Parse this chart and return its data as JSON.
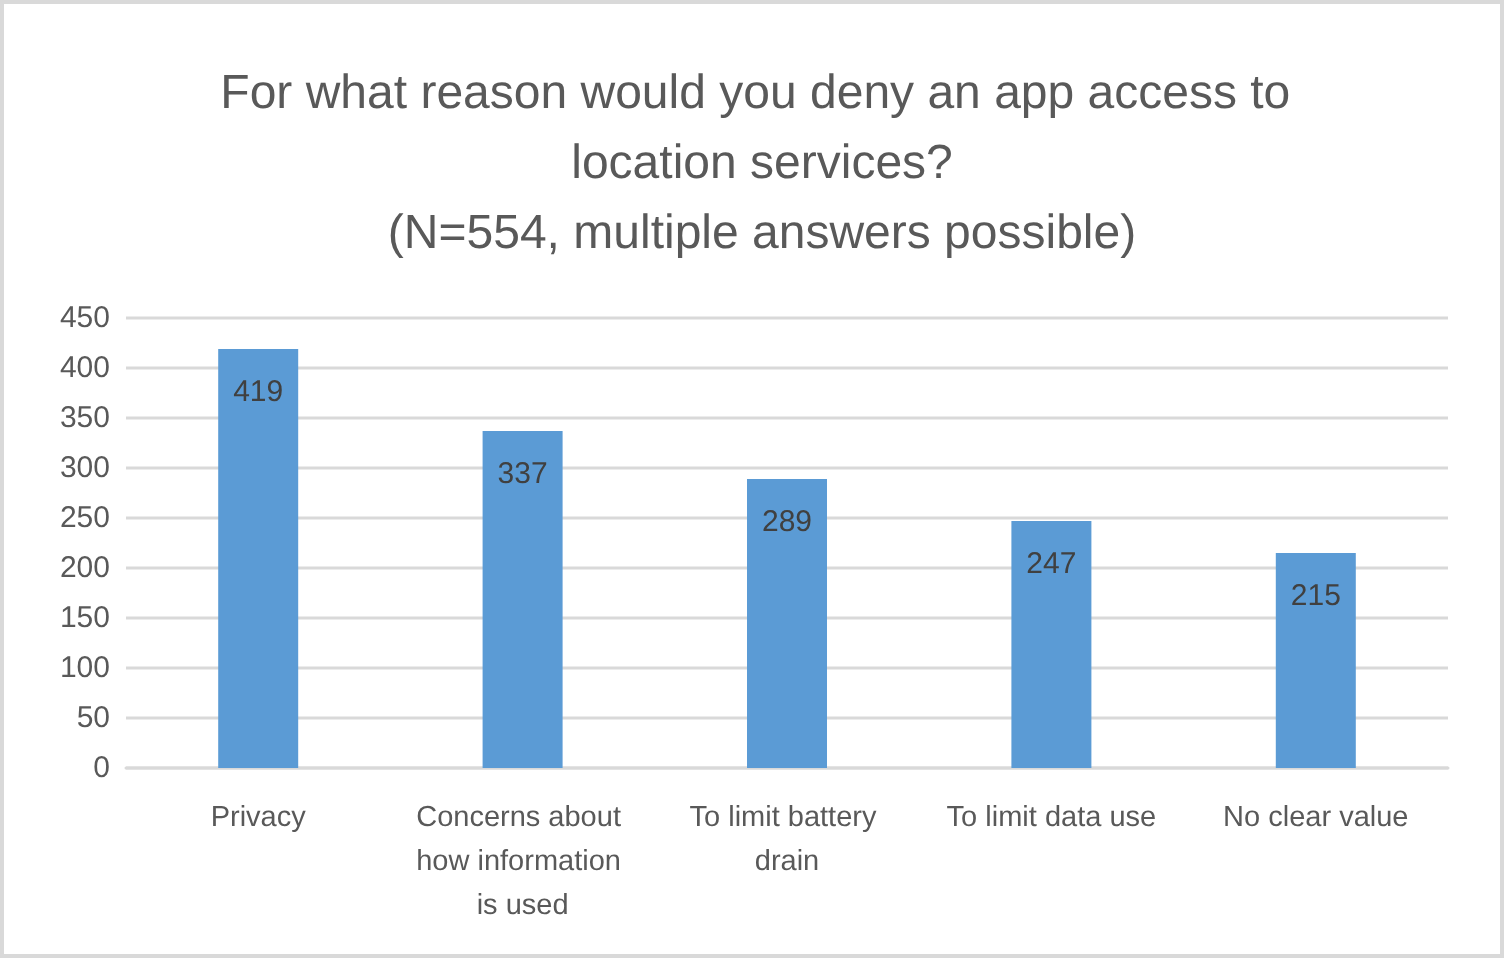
{
  "chart_data": {
    "type": "bar",
    "title": "For what reason would you deny an app access to location services?",
    "subtitle": "(N=554, multiple answers possible)",
    "categories": [
      "Privacy",
      "Concerns about how information is used",
      "To limit battery drain",
      "To limit data use",
      "No clear value"
    ],
    "values": [
      419,
      337,
      289,
      247,
      215
    ],
    "color": "#5b9bd5",
    "ylim": [
      0,
      450
    ],
    "yticks": [
      0,
      50,
      100,
      150,
      200,
      250,
      300,
      350,
      400,
      450
    ],
    "grid": "y",
    "data_labels": true
  }
}
